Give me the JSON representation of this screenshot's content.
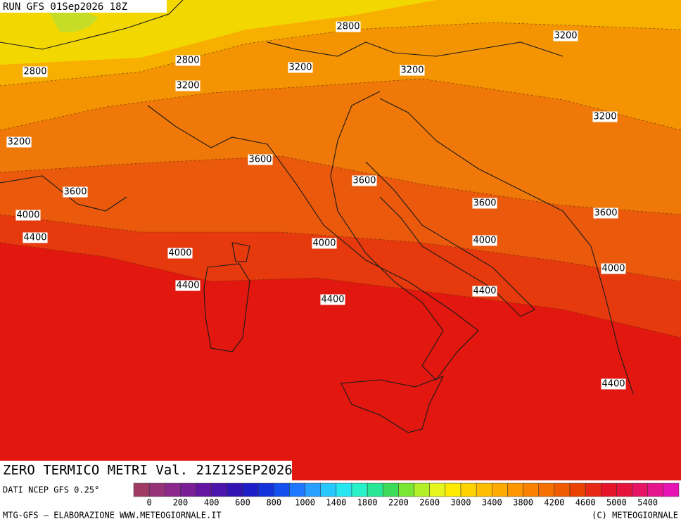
{
  "header": {
    "title": "RUN GFS 01Sep2026 18Z"
  },
  "contour_labels": [
    "2800",
    "3200",
    "2800",
    "3200",
    "3200",
    "2800",
    "3200",
    "3200",
    "3200",
    "3600",
    "3600",
    "3600",
    "3600",
    "3600",
    "4000",
    "4400",
    "4000",
    "4000",
    "4000",
    "4000",
    "4400",
    "4400",
    "4400",
    "4400"
  ],
  "map_title": "ZERO TERMICO METRI Val. 21Z12SEP2026",
  "source": "DATI NCEP GFS 0.25°",
  "colorbar": {
    "colors": [
      "#a03c64",
      "#963278",
      "#8c288c",
      "#7a1e96",
      "#6414a0",
      "#4b14aa",
      "#3214b4",
      "#1e1ec8",
      "#1432dc",
      "#1450f0",
      "#1e78ff",
      "#28a0ff",
      "#28c8ff",
      "#28e6f0",
      "#28f0c8",
      "#28e696",
      "#3cdc5a",
      "#78e632",
      "#b4f028",
      "#e6f51e",
      "#ffeb00",
      "#ffd200",
      "#ffbe00",
      "#ffaa00",
      "#ff9600",
      "#fa8200",
      "#f56e00",
      "#f05a00",
      "#eb4100",
      "#e62814",
      "#e61428",
      "#e6143c",
      "#e61464",
      "#e6148c",
      "#e614b4"
    ],
    "labels": [
      "0",
      "200",
      "400",
      "600",
      "800",
      "1000",
      "1400",
      "1800",
      "2200",
      "2600",
      "3000",
      "3400",
      "3800",
      "4200",
      "4600",
      "5000",
      "5400"
    ]
  },
  "footer": {
    "left": "MTG-GFS — ELABORAZIONE WWW.METEOGIORNALE.IT",
    "right": "(C) METEOGIORNALE"
  }
}
